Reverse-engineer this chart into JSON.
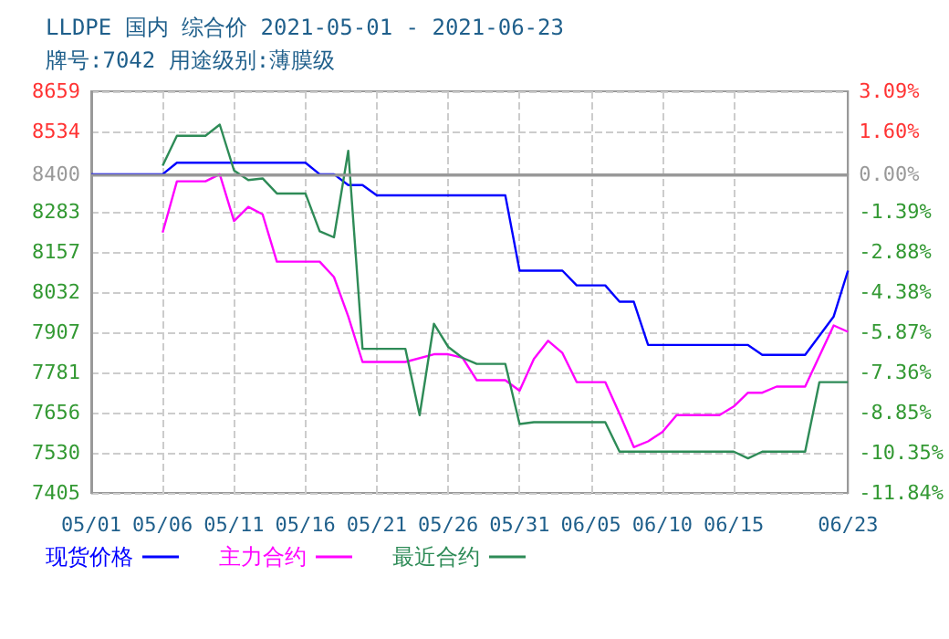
{
  "chart_data": {
    "type": "line",
    "title": "LLDPE 国内 综合价 2021-05-01 - 2021-06-23",
    "subtitle": "牌号:7042 用途级别:薄膜级",
    "xlim": [
      "2021-05-01",
      "2021-06-23"
    ],
    "xticks": [
      {
        "value": "2021-05-01",
        "label": "05/01"
      },
      {
        "value": "2021-05-06",
        "label": "05/06"
      },
      {
        "value": "2021-05-11",
        "label": "05/11"
      },
      {
        "value": "2021-05-16",
        "label": "05/16"
      },
      {
        "value": "2021-05-21",
        "label": "05/21"
      },
      {
        "value": "2021-05-26",
        "label": "05/26"
      },
      {
        "value": "2021-05-31",
        "label": "05/31"
      },
      {
        "value": "2021-06-05",
        "label": "06/05"
      },
      {
        "value": "2021-06-10",
        "label": "06/10"
      },
      {
        "value": "2021-06-15",
        "label": "06/15"
      },
      {
        "value": "2021-06-23",
        "label": "06/23"
      }
    ],
    "ylim": [
      7405,
      8659
    ],
    "yticks": [
      7405,
      7530,
      7656,
      7781,
      7907,
      8032,
      8157,
      8283,
      8400,
      8534,
      8659
    ],
    "y2lim": [
      -11.84,
      3.09
    ],
    "y2ticks": [
      {
        "value": -11.84,
        "label": "-11.84%"
      },
      {
        "value": -10.35,
        "label": "-10.35%"
      },
      {
        "value": -8.85,
        "label": "-8.85%"
      },
      {
        "value": -7.36,
        "label": "-7.36%"
      },
      {
        "value": -5.87,
        "label": "-5.87%"
      },
      {
        "value": -4.38,
        "label": "-4.38%"
      },
      {
        "value": -2.88,
        "label": "-2.88%"
      },
      {
        "value": -1.39,
        "label": "-1.39%"
      },
      {
        "value": 0,
        "label": "0.00%"
      },
      {
        "value": 1.6,
        "label": "1.60%"
      },
      {
        "value": 3.09,
        "label": "3.09%"
      }
    ],
    "grid": true,
    "legend": "bottom left",
    "line_style": "solid",
    "ref_lines": [
      {
        "axis": "y",
        "value": 8400,
        "color": "#999999"
      }
    ],
    "series": [
      {
        "name": "现货价格",
        "color": "#0000ff",
        "x": [
          "2021-05-01",
          "2021-05-06",
          "2021-05-07",
          "2021-05-16",
          "2021-05-17",
          "2021-05-18",
          "2021-05-19",
          "2021-05-20",
          "2021-05-21",
          "2021-05-30",
          "2021-05-31",
          "2021-06-03",
          "2021-06-04",
          "2021-06-06",
          "2021-06-07",
          "2021-06-08",
          "2021-06-09",
          "2021-06-16",
          "2021-06-17",
          "2021-06-20",
          "2021-06-22",
          "2021-06-23"
        ],
        "values": [
          8400,
          8400,
          8436,
          8436,
          8400,
          8400,
          8366,
          8366,
          8334,
          8334,
          8099,
          8099,
          8053,
          8053,
          8002,
          8002,
          7867,
          7867,
          7836,
          7836,
          7956,
          8099
        ]
      },
      {
        "name": "主力合约",
        "color": "#ff00ff",
        "x": [
          "2021-05-06",
          "2021-05-07",
          "2021-05-09",
          "2021-05-10",
          "2021-05-11",
          "2021-05-12",
          "2021-05-13",
          "2021-05-14",
          "2021-05-17",
          "2021-05-18",
          "2021-05-19",
          "2021-05-20",
          "2021-05-23",
          "2021-05-25",
          "2021-05-26",
          "2021-05-27",
          "2021-05-28",
          "2021-05-30",
          "2021-05-31",
          "2021-06-01",
          "2021-06-02",
          "2021-06-03",
          "2021-06-04",
          "2021-06-06",
          "2021-06-07",
          "2021-06-08",
          "2021-06-09",
          "2021-06-10",
          "2021-06-11",
          "2021-06-14",
          "2021-06-15",
          "2021-06-16",
          "2021-06-17",
          "2021-06-18",
          "2021-06-20",
          "2021-06-22",
          "2021-06-23"
        ],
        "values": [
          8218,
          8378,
          8378,
          8400,
          8254,
          8298,
          8275,
          8127,
          8127,
          8079,
          7956,
          7814,
          7814,
          7838,
          7838,
          7827,
          7757,
          7757,
          7724,
          7823,
          7880,
          7842,
          7751,
          7751,
          7652,
          7548,
          7566,
          7595,
          7648,
          7648,
          7675,
          7718,
          7718,
          7737,
          7737,
          7928,
          7908
        ]
      },
      {
        "name": "最近合约",
        "color": "#2e8b57",
        "x": [
          "2021-05-06",
          "2021-05-07",
          "2021-05-09",
          "2021-05-10",
          "2021-05-11",
          "2021-05-12",
          "2021-05-13",
          "2021-05-14",
          "2021-05-16",
          "2021-05-17",
          "2021-05-18",
          "2021-05-19",
          "2021-05-20",
          "2021-05-23",
          "2021-05-24",
          "2021-05-25",
          "2021-05-26",
          "2021-05-27",
          "2021-05-28",
          "2021-05-30",
          "2021-05-31",
          "2021-06-01",
          "2021-06-06",
          "2021-06-07",
          "2021-06-15",
          "2021-06-16",
          "2021-06-17",
          "2021-06-20",
          "2021-06-21",
          "2021-06-23"
        ],
        "values": [
          8427,
          8520,
          8520,
          8555,
          8412,
          8382,
          8387,
          8340,
          8340,
          8222,
          8203,
          8473,
          7855,
          7855,
          7648,
          7933,
          7861,
          7827,
          7808,
          7808,
          7620,
          7626,
          7626,
          7534,
          7534,
          7513,
          7534,
          7534,
          7751,
          7751
        ]
      }
    ]
  }
}
